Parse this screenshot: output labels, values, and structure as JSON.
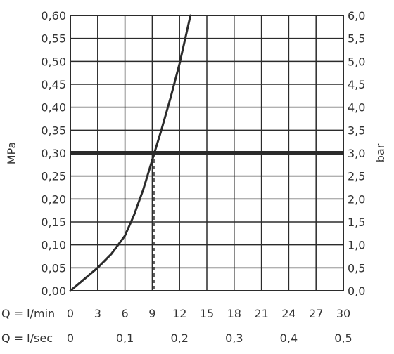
{
  "chart_data": {
    "type": "line",
    "y_left": {
      "label": "MPa",
      "ticks": [
        "0,00",
        "0,05",
        "0,10",
        "0,15",
        "0,20",
        "0,25",
        "0,30",
        "0,35",
        "0,40",
        "0,45",
        "0,50",
        "0,55",
        "0,60"
      ],
      "range": [
        0,
        0.6
      ]
    },
    "y_right": {
      "label": "bar",
      "ticks": [
        "0,0",
        "0,5",
        "1,0",
        "1,5",
        "2,0",
        "2,5",
        "3,0",
        "3,5",
        "4,0",
        "4,5",
        "5,0",
        "5,5",
        "6,0"
      ],
      "range": [
        0,
        6
      ]
    },
    "x_primary": {
      "label": "Q = l/min",
      "ticks": [
        "0",
        "3",
        "6",
        "9",
        "12",
        "15",
        "18",
        "21",
        "24",
        "27",
        "30"
      ],
      "range": [
        0,
        30
      ]
    },
    "x_secondary": {
      "label": "Q = l/sec",
      "ticks": [
        "0",
        "0,1",
        "0,2",
        "0,3",
        "0,4",
        "0,5"
      ],
      "tick_values_lmin": [
        0,
        6,
        12,
        18,
        24,
        30
      ]
    },
    "grid": true,
    "series": [
      {
        "x": [
          0,
          1.5,
          3,
          4.5,
          6,
          7,
          8,
          9,
          10,
          11,
          12,
          13.2
        ],
        "y": [
          0,
          0.025,
          0.05,
          0.08,
          0.12,
          0.165,
          0.22,
          0.285,
          0.35,
          0.42,
          0.495,
          0.6
        ]
      }
    ],
    "reference_line": {
      "y": 0.3
    },
    "marker_line": {
      "x": 9.2,
      "y": 0.3
    }
  }
}
